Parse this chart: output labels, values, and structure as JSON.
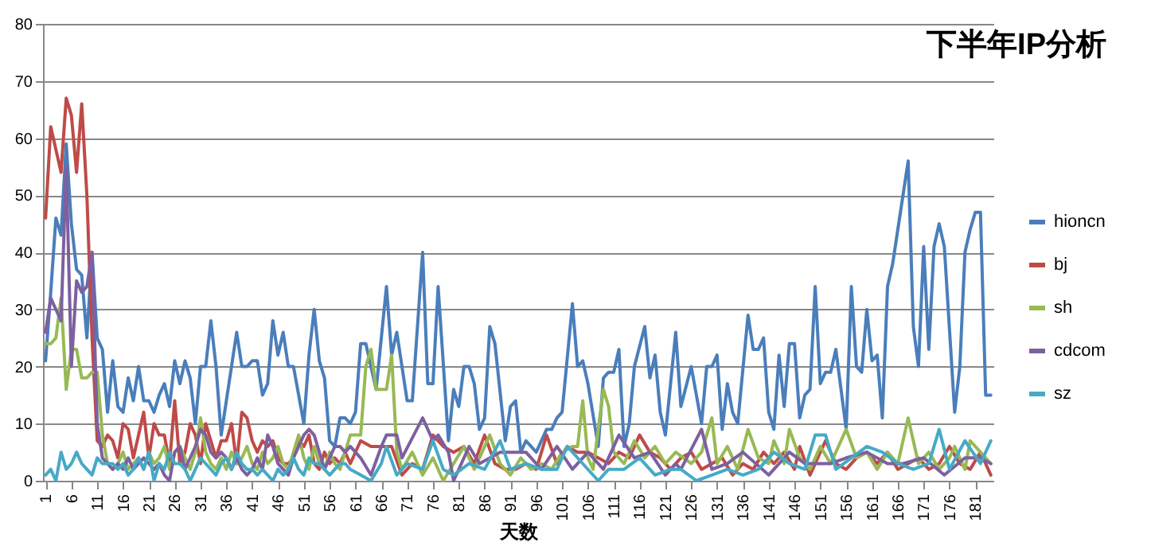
{
  "chart_data": {
    "type": "line",
    "title": "下半年IP分析",
    "xlabel": "天数",
    "xlim": [
      0.5,
      184.5
    ],
    "xticks": [
      1,
      6,
      11,
      16,
      21,
      26,
      31,
      36,
      41,
      46,
      51,
      56,
      61,
      66,
      71,
      76,
      81,
      86,
      91,
      96,
      101,
      106,
      111,
      116,
      121,
      126,
      131,
      136,
      141,
      146,
      151,
      156,
      161,
      166,
      171,
      176,
      181
    ],
    "ylim": [
      0,
      80
    ],
    "yticks": [
      0,
      10,
      20,
      30,
      40,
      50,
      60,
      70,
      80
    ],
    "grid": "y",
    "legend": "right",
    "series": [
      {
        "name": "hioncn",
        "color": "#4a7ebb",
        "x": [
          1,
          2,
          3,
          4,
          5,
          6,
          7,
          8,
          9,
          10,
          11,
          12,
          13,
          14,
          15,
          16,
          17,
          18,
          19,
          20,
          21,
          22,
          23,
          24,
          25,
          26,
          27,
          28,
          29,
          30,
          31,
          32,
          33,
          34,
          35,
          36,
          37,
          38,
          39,
          40,
          41,
          42,
          43,
          44,
          45,
          46,
          47,
          48,
          49,
          50,
          51,
          52,
          53,
          54,
          55,
          56,
          57,
          58,
          59,
          60,
          61,
          62,
          63,
          65,
          67,
          68,
          69,
          71,
          72,
          74,
          75,
          76,
          77,
          79,
          80,
          81,
          82,
          83,
          84,
          85,
          86,
          87,
          88,
          90,
          91,
          92,
          93,
          94,
          96,
          98,
          99,
          100,
          101,
          103,
          104,
          105,
          106,
          108,
          109,
          110,
          111,
          112,
          113,
          114,
          115,
          117,
          118,
          119,
          120,
          121,
          123,
          124,
          126,
          128,
          129,
          130,
          131,
          132,
          133,
          134,
          135,
          137,
          138,
          139,
          140,
          141,
          142,
          143,
          144,
          145,
          146,
          147,
          148,
          149,
          150,
          151,
          152,
          153,
          154,
          156,
          157,
          158,
          159,
          160,
          161,
          162,
          163,
          164,
          165,
          168,
          169,
          170,
          171,
          172,
          173,
          174,
          175,
          177,
          178,
          179,
          180,
          181,
          182,
          183,
          184
        ],
        "values": [
          21,
          33,
          46,
          43,
          59,
          45,
          37,
          36,
          25,
          40,
          25,
          23,
          12,
          21,
          13,
          12,
          18,
          14,
          20,
          14,
          14,
          12,
          15,
          17,
          13,
          21,
          17,
          21,
          18,
          10,
          20,
          20,
          28,
          20,
          8,
          14,
          20,
          26,
          20,
          20,
          21,
          21,
          15,
          17,
          28,
          22,
          26,
          20,
          20,
          15,
          10,
          22,
          30,
          21,
          18,
          7,
          6,
          11,
          11,
          10,
          12,
          24,
          24,
          16,
          34,
          22,
          26,
          14,
          14,
          40,
          17,
          17,
          34,
          7,
          16,
          13,
          20,
          20,
          17,
          9,
          11,
          27,
          24,
          7,
          13,
          14,
          5,
          7,
          5,
          9,
          9,
          11,
          12,
          31,
          20,
          21,
          17,
          6,
          18,
          19,
          19,
          23,
          6,
          10,
          20,
          27,
          18,
          22,
          12,
          8,
          26,
          13,
          20,
          10,
          20,
          20,
          22,
          9,
          17,
          12,
          10,
          29,
          23,
          23,
          25,
          12,
          9,
          22,
          13,
          24,
          24,
          11,
          15,
          16,
          34,
          17,
          19,
          19,
          23,
          9,
          34,
          20,
          19,
          30,
          21,
          22,
          11,
          34,
          38,
          56,
          27,
          20,
          41,
          23,
          41,
          45,
          41,
          12,
          20,
          40,
          44,
          47,
          47,
          15,
          15
        ]
      },
      {
        "name": "bj",
        "color": "#be4b48",
        "x": [
          1,
          2,
          3,
          4,
          5,
          6,
          7,
          8,
          9,
          10,
          11,
          12,
          13,
          14,
          15,
          16,
          17,
          18,
          19,
          20,
          21,
          22,
          23,
          24,
          25,
          26,
          27,
          28,
          29,
          30,
          31,
          32,
          33,
          34,
          35,
          36,
          37,
          38,
          39,
          40,
          41,
          42,
          43,
          44,
          45,
          46,
          47,
          48,
          49,
          50,
          51,
          52,
          53,
          54,
          55,
          56,
          57,
          58,
          59,
          60,
          62,
          64,
          66,
          68,
          70,
          72,
          74,
          76,
          78,
          80,
          82,
          84,
          86,
          88,
          90,
          92,
          94,
          96,
          98,
          100,
          102,
          104,
          106,
          108,
          110,
          112,
          114,
          116,
          118,
          120,
          122,
          124,
          126,
          128,
          130,
          132,
          134,
          136,
          138,
          140,
          142,
          144,
          146,
          147,
          149,
          152,
          154,
          156,
          158,
          160,
          162,
          164,
          166,
          168,
          170,
          172,
          174,
          176,
          178,
          180,
          182,
          184
        ],
        "values": [
          46,
          62,
          58,
          54,
          67,
          64,
          54,
          66,
          50,
          25,
          7,
          6,
          8,
          7,
          4,
          10,
          9,
          4,
          8,
          12,
          4,
          10,
          8,
          8,
          3,
          14,
          3,
          5,
          10,
          8,
          3,
          10,
          7,
          4,
          7,
          7,
          10,
          3,
          12,
          11,
          7,
          5,
          7,
          6,
          7,
          4,
          3,
          3,
          4,
          7,
          6,
          8,
          3,
          2,
          5,
          3,
          4,
          3,
          5,
          3,
          7,
          6,
          6,
          6,
          1,
          3,
          2,
          8,
          6,
          5,
          6,
          3,
          8,
          3,
          2,
          2,
          3,
          2,
          8,
          3,
          6,
          5,
          5,
          4,
          3,
          5,
          4,
          8,
          5,
          4,
          2,
          4,
          5,
          2,
          3,
          4,
          1,
          3,
          2,
          5,
          3,
          5,
          2,
          6,
          1,
          7,
          3,
          2,
          4,
          5,
          3,
          5,
          2,
          3,
          4,
          2,
          3,
          6,
          3,
          2,
          5,
          1
        ]
      },
      {
        "name": "sh",
        "color": "#98b954",
        "x": [
          1,
          2,
          3,
          4,
          5,
          6,
          7,
          8,
          9,
          10,
          11,
          12,
          13,
          14,
          15,
          16,
          17,
          18,
          19,
          20,
          21,
          22,
          23,
          24,
          25,
          26,
          27,
          28,
          29,
          30,
          31,
          32,
          33,
          34,
          35,
          36,
          37,
          38,
          39,
          40,
          41,
          42,
          43,
          44,
          45,
          46,
          47,
          48,
          49,
          50,
          51,
          52,
          53,
          54,
          55,
          56,
          57,
          58,
          59,
          60,
          61,
          62,
          63,
          64,
          65,
          67,
          68,
          69,
          70,
          72,
          74,
          76,
          78,
          80,
          82,
          84,
          87,
          89,
          91,
          93,
          95,
          97,
          99,
          101,
          103,
          104,
          105,
          106,
          107,
          109,
          110,
          111,
          113,
          115,
          117,
          119,
          121,
          123,
          126,
          128,
          130,
          131,
          133,
          135,
          137,
          139,
          141,
          142,
          144,
          145,
          147,
          149,
          151,
          153,
          156,
          158,
          160,
          162,
          164,
          166,
          168,
          170,
          172,
          174,
          176,
          177,
          179,
          180,
          182,
          184
        ],
        "values": [
          24,
          24,
          25,
          32,
          16,
          23,
          23,
          18,
          18,
          19,
          19,
          8,
          3,
          2,
          3,
          5,
          2,
          3,
          4,
          2,
          5,
          3,
          4,
          6,
          2,
          5,
          6,
          4,
          2,
          5,
          11,
          5,
          3,
          2,
          4,
          2,
          5,
          3,
          4,
          6,
          3,
          2,
          5,
          3,
          4,
          6,
          3,
          2,
          5,
          8,
          4,
          2,
          6,
          3,
          2,
          5,
          3,
          2,
          5,
          8,
          8,
          8,
          20,
          23,
          16,
          16,
          22,
          5,
          2,
          5,
          1,
          4,
          0,
          3,
          6,
          2,
          8,
          3,
          1,
          4,
          2,
          3,
          2,
          5,
          6,
          6,
          14,
          4,
          2,
          16,
          13,
          5,
          3,
          7,
          4,
          6,
          3,
          5,
          3,
          5,
          11,
          3,
          6,
          2,
          9,
          4,
          3,
          7,
          3,
          9,
          4,
          2,
          6,
          3,
          9,
          4,
          5,
          2,
          5,
          3,
          11,
          3,
          5,
          2,
          4,
          6,
          2,
          7,
          5,
          3
        ]
      },
      {
        "name": "cdcom",
        "color": "#7d60a0",
        "x": [
          1,
          2,
          3,
          4,
          5,
          6,
          7,
          8,
          9,
          10,
          11,
          12,
          13,
          14,
          15,
          16,
          17,
          18,
          19,
          20,
          21,
          22,
          23,
          24,
          25,
          26,
          27,
          28,
          29,
          30,
          31,
          32,
          33,
          34,
          35,
          36,
          37,
          38,
          39,
          40,
          41,
          42,
          43,
          44,
          45,
          46,
          47,
          48,
          49,
          50,
          51,
          52,
          53,
          54,
          55,
          56,
          57,
          58,
          59,
          60,
          62,
          64,
          66,
          67,
          69,
          70,
          74,
          76,
          77,
          79,
          80,
          83,
          85,
          89,
          91,
          94,
          97,
          100,
          103,
          106,
          109,
          112,
          115,
          118,
          121,
          123,
          124,
          128,
          130,
          133,
          136,
          141,
          145,
          148,
          153,
          156,
          160,
          164,
          167,
          171,
          175,
          179,
          182,
          184
        ],
        "values": [
          26,
          32,
          30,
          28,
          55,
          20,
          35,
          33,
          34,
          40,
          10,
          4,
          3,
          2,
          3,
          2,
          4,
          2,
          3,
          4,
          3,
          2,
          3,
          1,
          0,
          5,
          6,
          2,
          4,
          6,
          9,
          8,
          5,
          4,
          5,
          4,
          2,
          4,
          2,
          1,
          2,
          4,
          2,
          8,
          6,
          3,
          2,
          1,
          4,
          6,
          8,
          9,
          8,
          5,
          2,
          4,
          6,
          6,
          5,
          6,
          4,
          1,
          6,
          8,
          8,
          4,
          11,
          7,
          8,
          5,
          0,
          6,
          3,
          5,
          5,
          5,
          2,
          6,
          2,
          5,
          2,
          8,
          4,
          5,
          1,
          3,
          2,
          9,
          2,
          3,
          5,
          1,
          5,
          3,
          3,
          4,
          5,
          3,
          3,
          4,
          1,
          4,
          4,
          3
        ]
      },
      {
        "name": "sz",
        "color": "#46aac5",
        "x": [
          1,
          2,
          3,
          4,
          5,
          6,
          7,
          8,
          9,
          10,
          11,
          12,
          13,
          14,
          15,
          16,
          17,
          18,
          19,
          20,
          21,
          22,
          23,
          24,
          25,
          26,
          27,
          28,
          29,
          30,
          31,
          32,
          33,
          34,
          35,
          36,
          37,
          38,
          39,
          40,
          41,
          42,
          43,
          44,
          45,
          46,
          47,
          48,
          49,
          50,
          51,
          52,
          53,
          54,
          55,
          56,
          57,
          58,
          59,
          60,
          62,
          64,
          66,
          67,
          69,
          71,
          74,
          76,
          78,
          80,
          83,
          86,
          89,
          91,
          94,
          97,
          100,
          102,
          105,
          108,
          110,
          113,
          116,
          119,
          122,
          124,
          127,
          130,
          133,
          136,
          139,
          142,
          145,
          148,
          150,
          152,
          154,
          157,
          160,
          163,
          166,
          169,
          172,
          174,
          176,
          179,
          182,
          184
        ],
        "values": [
          1,
          2,
          0,
          5,
          2,
          3,
          5,
          3,
          2,
          1,
          4,
          3,
          3,
          3,
          2,
          3,
          1,
          2,
          4,
          2,
          5,
          0,
          3,
          2,
          5,
          3,
          3,
          2,
          0,
          2,
          4,
          3,
          2,
          1,
          3,
          4,
          2,
          5,
          3,
          2,
          2,
          1,
          2,
          1,
          0,
          2,
          1,
          2,
          4,
          2,
          1,
          4,
          3,
          3,
          2,
          1,
          2,
          3,
          3,
          2,
          1,
          0,
          3,
          6,
          1,
          3,
          2,
          7,
          2,
          1,
          3,
          2,
          7,
          2,
          3,
          2,
          2,
          6,
          3,
          0,
          2,
          2,
          4,
          1,
          2,
          2,
          0,
          1,
          2,
          1,
          2,
          5,
          3,
          2,
          8,
          8,
          2,
          4,
          6,
          5,
          3,
          2,
          3,
          9,
          2,
          7,
          3,
          7
        ]
      }
    ]
  }
}
